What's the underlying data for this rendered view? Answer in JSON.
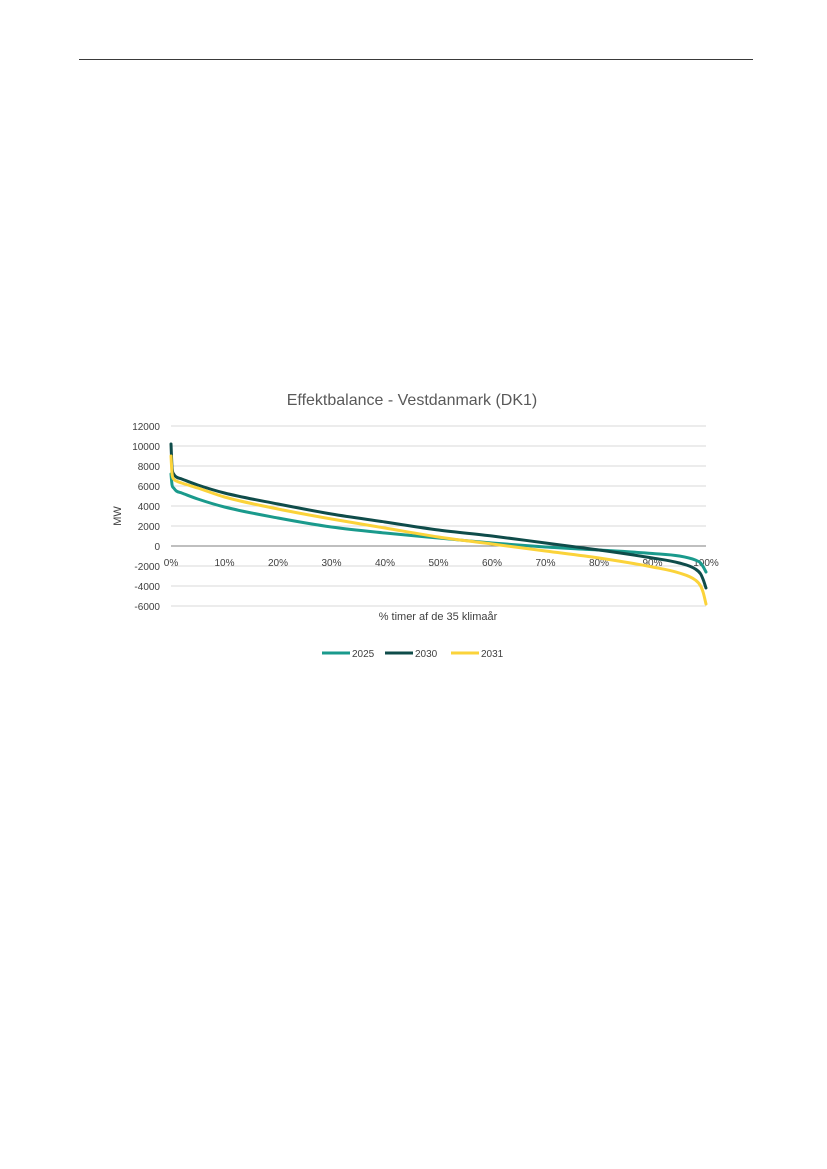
{
  "chart_data": {
    "type": "line",
    "title": "Effektbalance - Vestdanmark (DK1)",
    "xlabel": "% timer af de 35 klimaår",
    "ylabel": "MW",
    "x_ticks": [
      "0%",
      "10%",
      "20%",
      "30%",
      "40%",
      "50%",
      "60%",
      "70%",
      "80%",
      "90%",
      "100%"
    ],
    "y_ticks": [
      "12000",
      "10000",
      "8000",
      "6000",
      "4000",
      "2000",
      "0",
      "-2000",
      "-4000",
      "-6000"
    ],
    "xlim": [
      0,
      100
    ],
    "ylim": [
      -6000,
      12000
    ],
    "grid": true,
    "legend_position": "bottom",
    "x": [
      0,
      0.2,
      0.5,
      1,
      2,
      5,
      10,
      20,
      30,
      40,
      50,
      60,
      70,
      80,
      90,
      95,
      98,
      99,
      99.5,
      100
    ],
    "series": [
      {
        "name": "2025",
        "color": "#1a9a8c",
        "values": [
          7200,
          6100,
          5800,
          5500,
          5300,
          4700,
          3900,
          2800,
          1900,
          1300,
          800,
          300,
          -100,
          -400,
          -750,
          -1000,
          -1400,
          -1700,
          -2100,
          -2600
        ]
      },
      {
        "name": "2030",
        "color": "#0f4c4a",
        "values": [
          10200,
          7800,
          7200,
          6900,
          6700,
          6100,
          5300,
          4200,
          3200,
          2400,
          1600,
          1000,
          300,
          -400,
          -1200,
          -1700,
          -2300,
          -2800,
          -3400,
          -4200
        ]
      },
      {
        "name": "2031",
        "color": "#fbd33a",
        "values": [
          9000,
          7200,
          6700,
          6500,
          6300,
          5800,
          4900,
          3700,
          2700,
          1800,
          900,
          200,
          -500,
          -1200,
          -2100,
          -2700,
          -3400,
          -4000,
          -4700,
          -5800
        ]
      }
    ]
  }
}
